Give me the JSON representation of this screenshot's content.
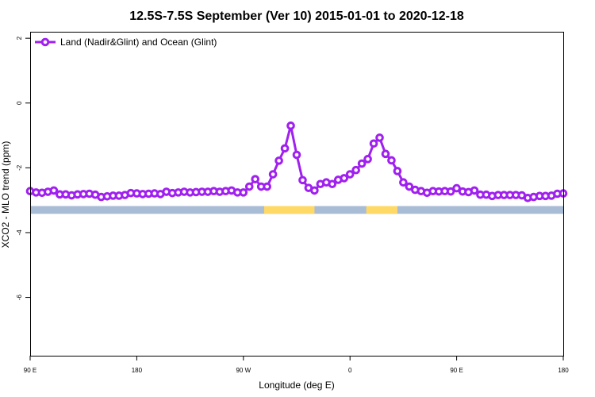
{
  "chart_data": {
    "type": "line",
    "title": "12.5S-7.5S September (Ver 10)   2015-01-01 to 2020-12-18",
    "xlabel": "Longitude (deg E)",
    "ylabel": "XCO2 - MLO trend (ppm)",
    "xlim": [
      90,
      450
    ],
    "ylim": [
      -7.8,
      2.2
    ],
    "x_ticks": [
      {
        "value": 90,
        "label": "90 E"
      },
      {
        "value": 162,
        "label": "180"
      },
      {
        "value": 234,
        "label": "90 W"
      },
      {
        "value": 306,
        "label": "0"
      },
      {
        "value": 378,
        "label": "90 E"
      },
      {
        "value": 450,
        "label": "180"
      }
    ],
    "y_ticks": [
      2,
      0,
      -2,
      -4,
      -6
    ],
    "legend_position": "top-left",
    "series": [
      {
        "name": "Land (Nadir&Glint) and Ocean (Glint)",
        "color": "#a020f0",
        "x": [
          90,
          94,
          98,
          102,
          106,
          110,
          114,
          118,
          122,
          126,
          130,
          134,
          138,
          142,
          146,
          150,
          154,
          158,
          162,
          166,
          170,
          174,
          178,
          182,
          186,
          190,
          194,
          198,
          202,
          206,
          210,
          214,
          218,
          222,
          226,
          230,
          234,
          238,
          242,
          246,
          250,
          254,
          258,
          262,
          266,
          270,
          274,
          278,
          282,
          286,
          290,
          294,
          298,
          302,
          306,
          310,
          314,
          318,
          322,
          326,
          330,
          334,
          338,
          342,
          346,
          350,
          354,
          358,
          362,
          366,
          370,
          374,
          378,
          382,
          386,
          390,
          394,
          398,
          402,
          406,
          410,
          414,
          418,
          422,
          426,
          430,
          434,
          438,
          442,
          446,
          450
        ],
        "values": [
          -2.72,
          -2.76,
          -2.77,
          -2.74,
          -2.7,
          -2.82,
          -2.82,
          -2.85,
          -2.82,
          -2.81,
          -2.8,
          -2.83,
          -2.9,
          -2.88,
          -2.86,
          -2.86,
          -2.84,
          -2.78,
          -2.79,
          -2.81,
          -2.8,
          -2.79,
          -2.81,
          -2.74,
          -2.78,
          -2.76,
          -2.74,
          -2.76,
          -2.75,
          -2.74,
          -2.74,
          -2.72,
          -2.74,
          -2.72,
          -2.7,
          -2.76,
          -2.76,
          -2.58,
          -2.35,
          -2.58,
          -2.58,
          -2.2,
          -1.78,
          -1.4,
          -0.7,
          -1.6,
          -2.38,
          -2.62,
          -2.7,
          -2.5,
          -2.45,
          -2.5,
          -2.37,
          -2.32,
          -2.2,
          -2.07,
          -1.87,
          -1.73,
          -1.25,
          -1.07,
          -1.57,
          -1.77,
          -2.1,
          -2.45,
          -2.58,
          -2.68,
          -2.72,
          -2.77,
          -2.72,
          -2.73,
          -2.72,
          -2.73,
          -2.63,
          -2.73,
          -2.75,
          -2.7,
          -2.83,
          -2.83,
          -2.87,
          -2.84,
          -2.84,
          -2.84,
          -2.84,
          -2.85,
          -2.93,
          -2.9,
          -2.87,
          -2.87,
          -2.86,
          -2.8,
          -2.79
        ]
      }
    ],
    "land_mask_bar": {
      "y_range": [
        -3.42,
        -3.18
      ],
      "ocean_color": "#a9bcd6",
      "land_color": "#ffd966",
      "land_segments": [
        [
          248,
          282
        ],
        [
          317,
          338
        ]
      ]
    }
  }
}
